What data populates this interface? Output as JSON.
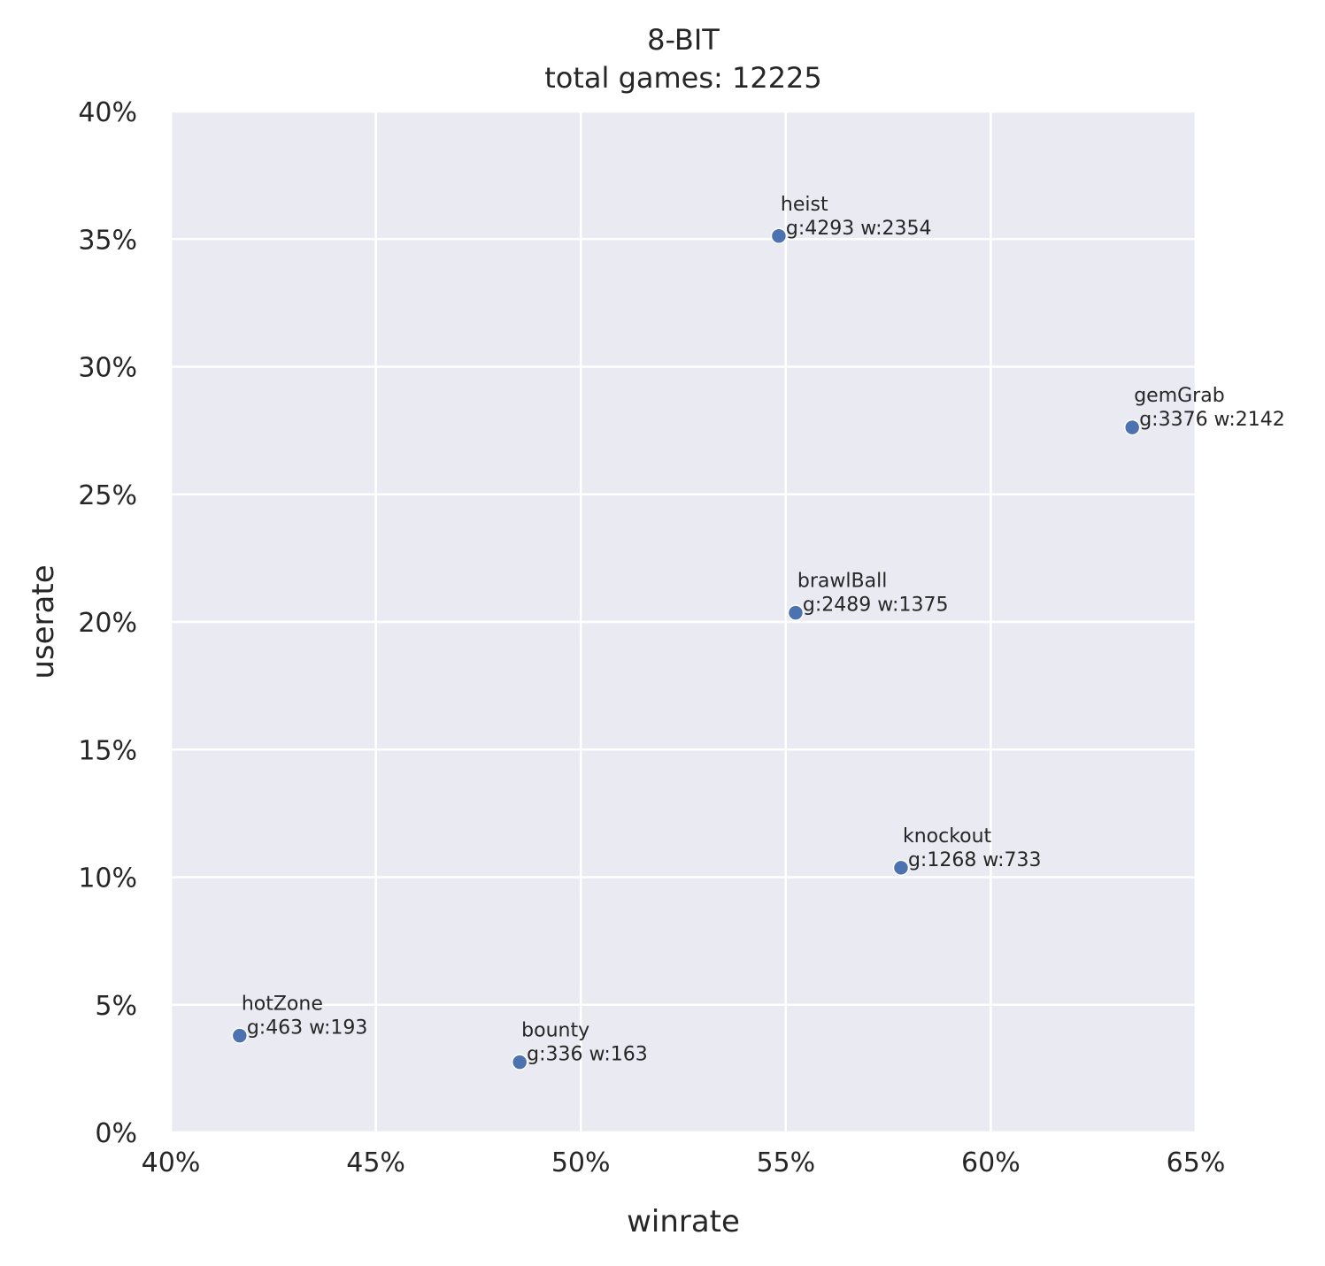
{
  "chart_data": {
    "type": "scatter",
    "title": "8-BIT",
    "subtitle": "total games: 12225",
    "xlabel": "winrate",
    "ylabel": "userate",
    "xlim": [
      40,
      65
    ],
    "ylim": [
      0,
      40
    ],
    "x_ticks": [
      "40%",
      "45%",
      "50%",
      "55%",
      "60%",
      "65%"
    ],
    "y_ticks": [
      "0%",
      "5%",
      "10%",
      "15%",
      "20%",
      "25%",
      "30%",
      "35%",
      "40%"
    ],
    "grid": true,
    "background": "#eaeaf2",
    "point_color": "#4c72b0",
    "points": [
      {
        "label": "heist",
        "stats": "g:4293 w:2354",
        "x": 54.83,
        "y": 35.12
      },
      {
        "label": "gemGrab",
        "stats": "g:3376 w:2142",
        "x": 63.45,
        "y": 27.62
      },
      {
        "label": "brawlBall",
        "stats": "g:2489 w:1375",
        "x": 55.24,
        "y": 20.36
      },
      {
        "label": "knockout",
        "stats": "g:1268 w:733",
        "x": 57.81,
        "y": 10.37
      },
      {
        "label": "hotZone",
        "stats": "g:463 w:193",
        "x": 41.68,
        "y": 3.79
      },
      {
        "label": "bounty",
        "stats": "g:336 w:163",
        "x": 48.51,
        "y": 2.75
      }
    ]
  }
}
